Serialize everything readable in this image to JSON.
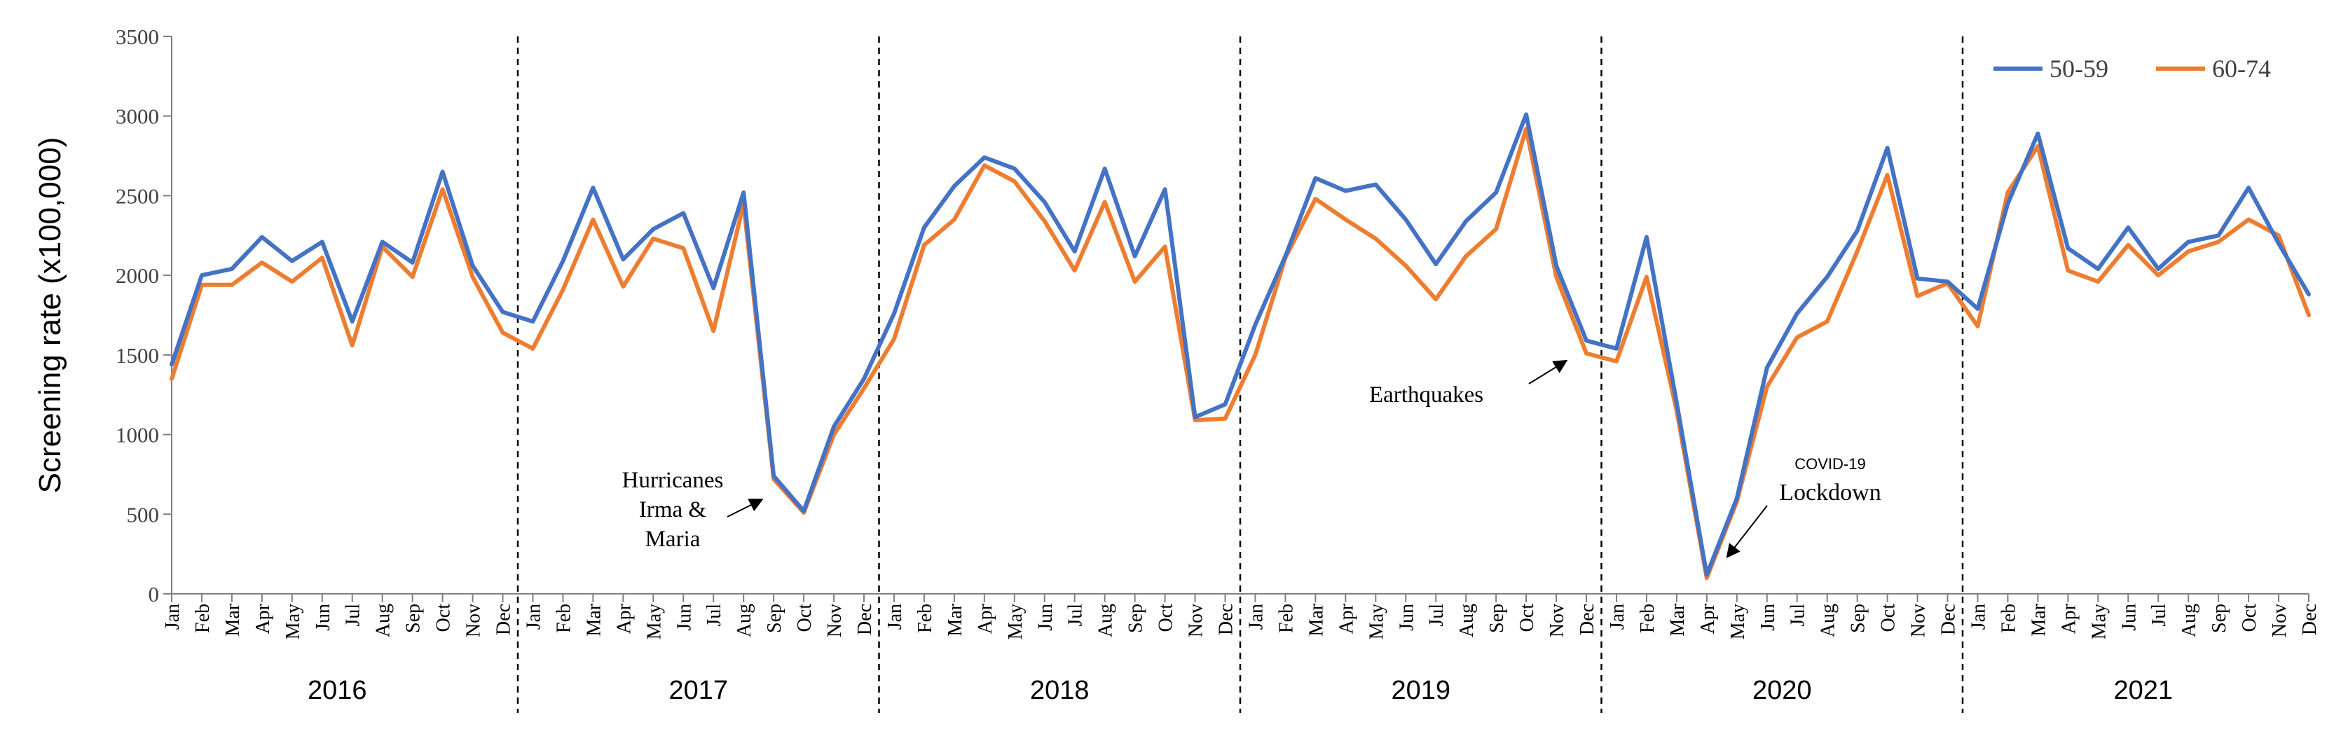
{
  "chart_data": {
    "type": "line",
    "title": "",
    "xlabel": "",
    "ylabel": "Screening rate (x100,000)",
    "ylim": [
      0,
      3500
    ],
    "yticks": [
      0,
      500,
      1000,
      1500,
      2000,
      2500,
      3000,
      3500
    ],
    "grid": false,
    "legend": "top-right",
    "years": [
      "2016",
      "2017",
      "2018",
      "2019",
      "2020",
      "2021"
    ],
    "months": [
      "Jan",
      "Feb",
      "Mar",
      "Apr",
      "May",
      "Jun",
      "Jul",
      "Aug",
      "Sep",
      "Oct",
      "Nov",
      "Dec"
    ],
    "series": [
      {
        "name": "50-59",
        "color": "#4472C4",
        "values": [
          1440,
          2000,
          2040,
          2240,
          2090,
          2210,
          1710,
          2210,
          2080,
          2650,
          2060,
          1770,
          1710,
          2090,
          2550,
          2100,
          2290,
          2390,
          1920,
          2520,
          740,
          520,
          1050,
          1350,
          1760,
          2300,
          2560,
          2740,
          2670,
          2460,
          2150,
          2670,
          2120,
          2540,
          1110,
          1190,
          1690,
          2120,
          2610,
          2530,
          2570,
          2350,
          2070,
          2340,
          2520,
          3010,
          2060,
          1590,
          1540,
          2240,
          1200,
          120,
          600,
          1420,
          1760,
          1990,
          2280,
          2800,
          1980,
          1960,
          1790,
          2450,
          2890,
          2170,
          2040,
          2300,
          2040,
          2210,
          2250,
          2550,
          2200,
          1880
        ]
      },
      {
        "name": "60-74",
        "color": "#ED7D31",
        "values": [
          1350,
          1940,
          1940,
          2080,
          1960,
          2110,
          1560,
          2180,
          1990,
          2540,
          1990,
          1640,
          1540,
          1910,
          2350,
          1930,
          2230,
          2170,
          1650,
          2450,
          720,
          510,
          1000,
          1290,
          1600,
          2190,
          2350,
          2690,
          2590,
          2340,
          2030,
          2460,
          1960,
          2180,
          1090,
          1100,
          1500,
          2110,
          2480,
          2350,
          2230,
          2060,
          1850,
          2120,
          2290,
          2920,
          1990,
          1510,
          1460,
          1990,
          1150,
          100,
          580,
          1300,
          1610,
          1710,
          2150,
          2630,
          1870,
          1950,
          1680,
          2520,
          2810,
          2030,
          1960,
          2190,
          2000,
          2150,
          2210,
          2350,
          2250,
          1750
        ]
      }
    ],
    "annotations": [
      {
        "lines": [
          "Hurricanes",
          "Irma &",
          "Maria"
        ],
        "target_index": 20
      },
      {
        "lines": [
          "Earthquakes"
        ],
        "target_index": 47
      },
      {
        "lines": [
          "COVID-19",
          "Lockdown"
        ],
        "target_index": 51
      }
    ]
  }
}
